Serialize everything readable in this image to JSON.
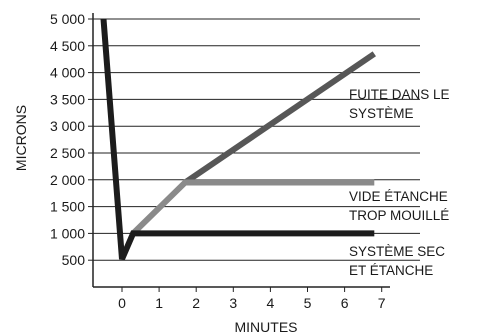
{
  "chart_data": {
    "type": "line",
    "title": "",
    "xlabel": "MINUTES",
    "ylabel": "MICRONS",
    "xlim": [
      -0.7,
      7.3
    ],
    "ylim": [
      0,
      5000
    ],
    "x_ticks": [
      0,
      1,
      2,
      3,
      4,
      5,
      6,
      7
    ],
    "y_ticks": [
      500,
      1000,
      1500,
      2000,
      2500,
      3000,
      3500,
      4000,
      4500,
      5000
    ],
    "y_tick_labels": [
      "500",
      "1 000",
      "1 500",
      "2 000",
      "2 500",
      "3 000",
      "3 500",
      "4 000",
      "4 500",
      "5 000"
    ],
    "grid": "horizontal",
    "legend": "none",
    "series": [
      {
        "name": "FUITE DANS LE SYSTÈME",
        "color": "#575757",
        "points": [
          [
            1.7,
            1950
          ],
          [
            6.8,
            4350
          ]
        ]
      },
      {
        "name": "VIDE ÉTANCHE TROP MOUILLÉ",
        "color": "#8a8a8a",
        "points": [
          [
            0.3,
            1000
          ],
          [
            1.7,
            1950
          ],
          [
            6.8,
            1950
          ]
        ]
      },
      {
        "name": "SYSTÈME SEC ET ÉTANCHE",
        "color": "#1c1c1c",
        "points": [
          [
            -0.5,
            5000
          ],
          [
            0,
            520
          ],
          [
            0.3,
            1000
          ],
          [
            6.8,
            1000
          ]
        ]
      }
    ],
    "annotations": [
      {
        "series": 0,
        "lines": [
          "FUITE DANS LE",
          "SYSTÈME"
        ]
      },
      {
        "series": 1,
        "lines": [
          "VIDE ÉTANCHE",
          "TROP MOUILLÉ"
        ]
      },
      {
        "series": 2,
        "lines": [
          "SYSTÈME SEC",
          "ET ÉTANCHE"
        ]
      }
    ]
  }
}
